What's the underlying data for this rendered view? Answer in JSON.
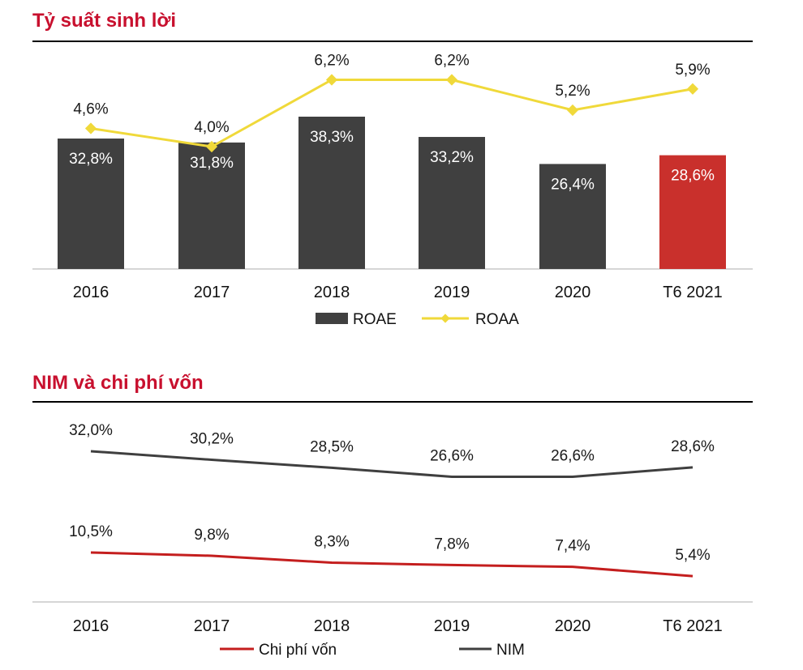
{
  "colors": {
    "title": "#c8102e",
    "bar": "#404040",
    "bar_highlight": "#c9302c",
    "roaa": "#f0d93a",
    "nim": "#3f3f3f",
    "cost": "#c41e1e"
  },
  "chart_data": [
    {
      "type": "bar+line",
      "title": "Tỷ suất sinh lời",
      "categories": [
        "2016",
        "2017",
        "2018",
        "2019",
        "2020",
        "T6 2021"
      ],
      "series": [
        {
          "name": "ROAE",
          "kind": "bar",
          "values": [
            32.8,
            31.8,
            38.3,
            33.2,
            26.4,
            28.6
          ],
          "labels": [
            "32,8%",
            "31,8%",
            "38,3%",
            "33,2%",
            "26,4%",
            "28,6%"
          ]
        },
        {
          "name": "ROAA",
          "kind": "line",
          "values": [
            4.6,
            4.0,
            6.2,
            6.2,
            5.2,
            5.9
          ],
          "labels": [
            "4,6%",
            "4,0%",
            "6,2%",
            "6,2%",
            "5,2%",
            "5,9%"
          ]
        }
      ],
      "legend": [
        "ROAE",
        "ROAA"
      ],
      "legend_position": "bottom"
    },
    {
      "type": "line",
      "title": "NIM và chi phí vốn",
      "categories": [
        "2016",
        "2017",
        "2018",
        "2019",
        "2020",
        "T6 2021"
      ],
      "series": [
        {
          "name": "NIM",
          "values": [
            32.0,
            30.2,
            28.5,
            26.6,
            26.6,
            28.6
          ],
          "labels": [
            "32,0%",
            "30,2%",
            "28,5%",
            "26,6%",
            "26,6%",
            "28,6%"
          ]
        },
        {
          "name": "Chi phí vốn",
          "values": [
            10.5,
            9.8,
            8.3,
            7.8,
            7.4,
            5.4
          ],
          "labels": [
            "10,5%",
            "9,8%",
            "8,3%",
            "7,8%",
            "7,4%",
            "5,4%"
          ]
        }
      ],
      "legend": [
        "Chi phí vốn",
        "NIM"
      ],
      "legend_position": "bottom"
    }
  ]
}
